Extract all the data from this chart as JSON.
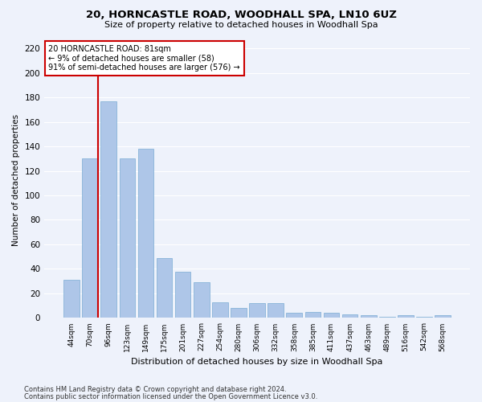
{
  "title": "20, HORNCASTLE ROAD, WOODHALL SPA, LN10 6UZ",
  "subtitle": "Size of property relative to detached houses in Woodhall Spa",
  "xlabel": "Distribution of detached houses by size in Woodhall Spa",
  "ylabel": "Number of detached properties",
  "footnote1": "Contains HM Land Registry data © Crown copyright and database right 2024.",
  "footnote2": "Contains public sector information licensed under the Open Government Licence v3.0.",
  "categories": [
    "44sqm",
    "70sqm",
    "96sqm",
    "123sqm",
    "149sqm",
    "175sqm",
    "201sqm",
    "227sqm",
    "254sqm",
    "280sqm",
    "306sqm",
    "332sqm",
    "358sqm",
    "385sqm",
    "411sqm",
    "437sqm",
    "463sqm",
    "489sqm",
    "516sqm",
    "542sqm",
    "568sqm"
  ],
  "values": [
    31,
    130,
    177,
    130,
    138,
    49,
    38,
    29,
    13,
    8,
    12,
    12,
    4,
    5,
    4,
    3,
    2,
    1,
    2,
    1,
    2
  ],
  "bar_color": "#aec6e8",
  "bar_edge_color": "#7aadd4",
  "background_color": "#eef2fb",
  "annotation_text": "20 HORNCASTLE ROAD: 81sqm\n← 9% of detached houses are smaller (58)\n91% of semi-detached houses are larger (576) →",
  "annotation_box_color": "#ffffff",
  "annotation_box_edge": "#cc0000",
  "red_line_x": 1.42,
  "ylim": [
    0,
    225
  ],
  "yticks": [
    0,
    20,
    40,
    60,
    80,
    100,
    120,
    140,
    160,
    180,
    200,
    220
  ]
}
